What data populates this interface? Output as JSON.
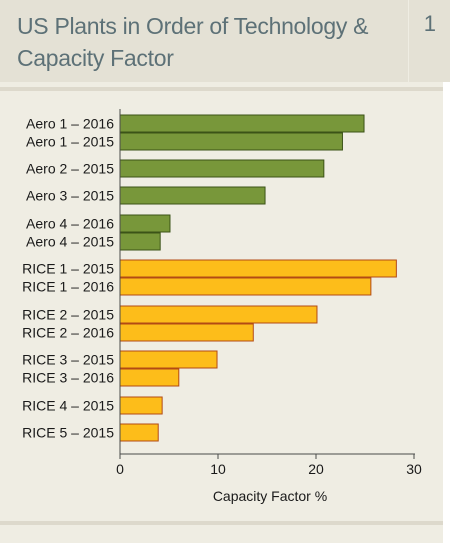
{
  "title": "US Plants in Order of Technology & Capacity Factor",
  "figure_number": "1",
  "colors": {
    "aero_fill": "#78973a",
    "aero_stroke": "#3b5317",
    "rice_fill": "#fdbd1a",
    "rice_stroke": "#b34a14",
    "text": "#1a1a1a",
    "title": "#5d7177",
    "axis": "#4a4a4a"
  },
  "chart_data": {
    "type": "bar",
    "orientation": "horizontal",
    "xlabel": "Capacity Factor %",
    "ylabel": "",
    "xlim": [
      0,
      30
    ],
    "xticks": [
      0,
      10,
      20,
      30
    ],
    "grid": false,
    "legend": "none",
    "categories": [
      "Aero 1 – 2016",
      "Aero 1 – 2015",
      "Aero 2 – 2015",
      "Aero 3 – 2015",
      "Aero 4 – 2016",
      "Aero 4 – 2015",
      "RICE 1 – 2015",
      "RICE 1 – 2016",
      "RICE 2 – 2015",
      "RICE 2 – 2016",
      "RICE 3 – 2015",
      "RICE 3 – 2016",
      "RICE 4 – 2015",
      "RICE 5 – 2015"
    ],
    "values": [
      24.9,
      22.7,
      20.8,
      14.8,
      5.1,
      4.1,
      28.2,
      25.6,
      20.1,
      13.6,
      9.9,
      6.0,
      4.3,
      3.9
    ],
    "technology": [
      "Aero",
      "Aero",
      "Aero",
      "Aero",
      "Aero",
      "Aero",
      "RICE",
      "RICE",
      "RICE",
      "RICE",
      "RICE",
      "RICE",
      "RICE",
      "RICE"
    ]
  }
}
